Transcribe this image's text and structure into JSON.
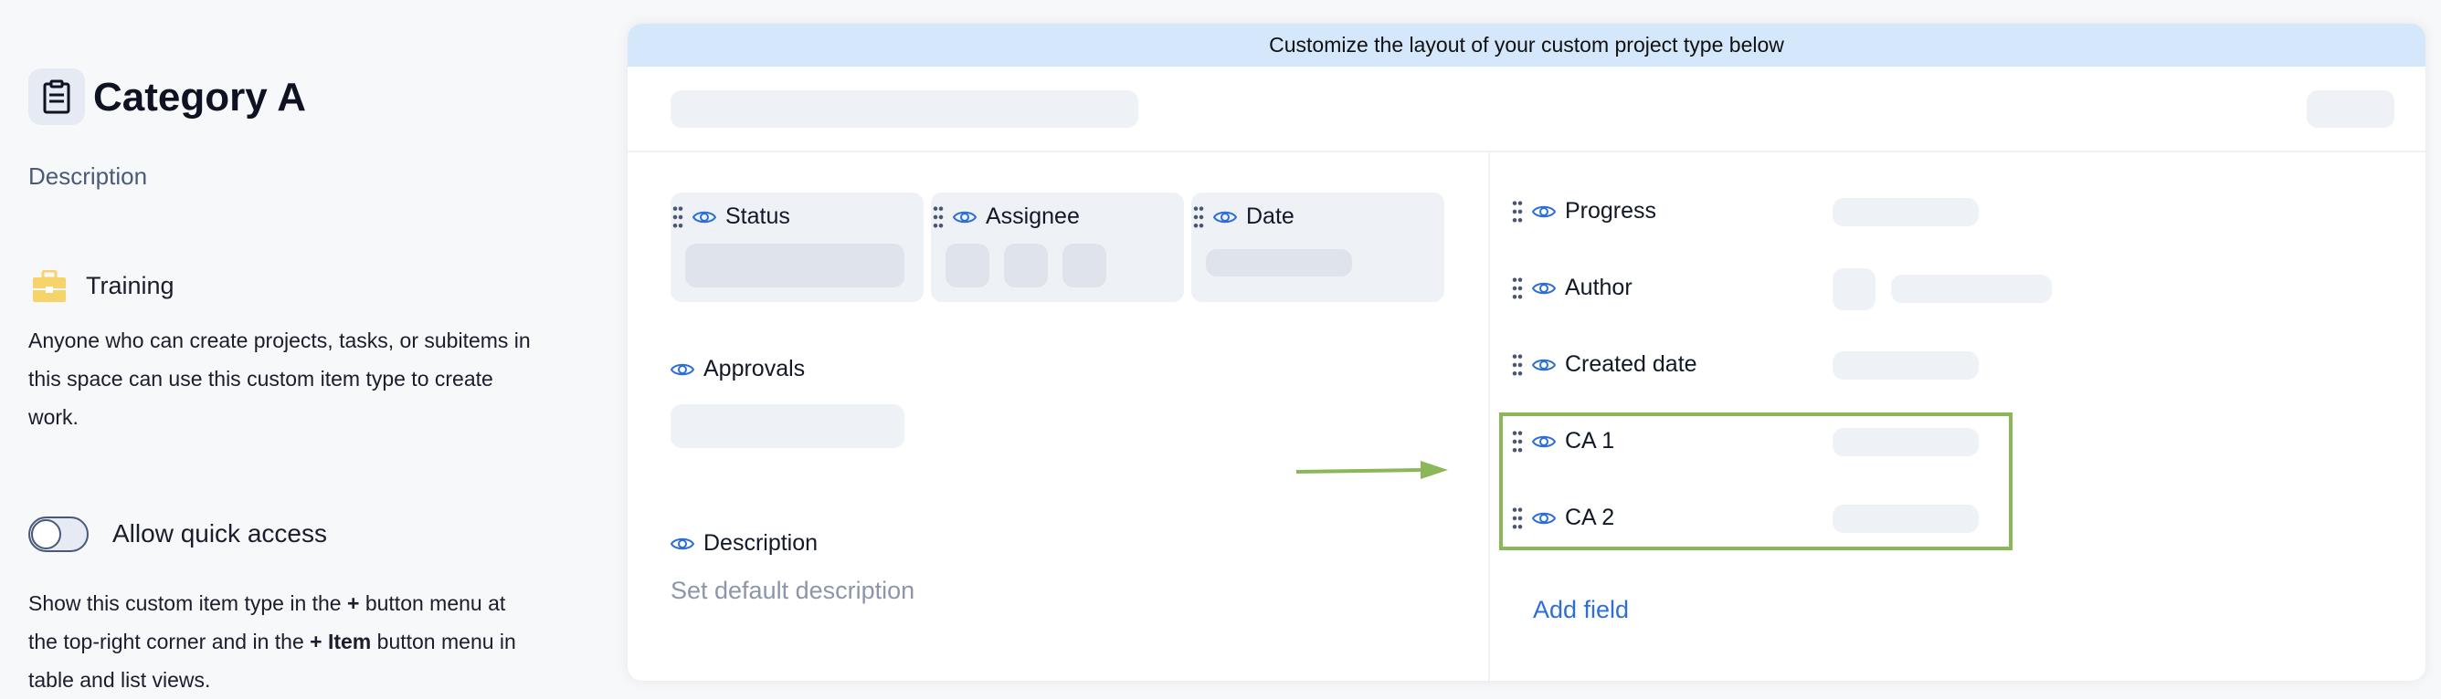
{
  "sidebar": {
    "title": "Category A",
    "title_icon": "clipboard-icon",
    "description": "Description",
    "space_icon": "briefcase-icon",
    "space_icon_color": "#f7d36b",
    "space_name": "Training",
    "space_text": "Anyone who can create projects, tasks, or subitems in this space can use this custom item type to create work.",
    "quick_access": {
      "label": "Allow quick access",
      "enabled": false
    },
    "quick_access_text_1": "Show this custom item type in the ",
    "quick_access_plus": "+",
    "quick_access_text_2": " button menu at the top-right corner and in the ",
    "quick_access_item": "+ Item",
    "quick_access_text_3": " button menu in table and list views."
  },
  "editor": {
    "banner": "Customize the layout of your custom project type below",
    "banner_color": "#d5e8fb",
    "top_fields": [
      "Status",
      "Assignee",
      "Date"
    ],
    "approvals_label": "Approvals",
    "description_label": "Description",
    "description_placeholder": "Set default description",
    "right_fields": [
      "Progress",
      "Author",
      "Created date",
      "CA 1",
      "CA 2"
    ],
    "add_field": "Add field",
    "highlight_color": "#8ab758",
    "accent_color": "#2d6fd6"
  }
}
